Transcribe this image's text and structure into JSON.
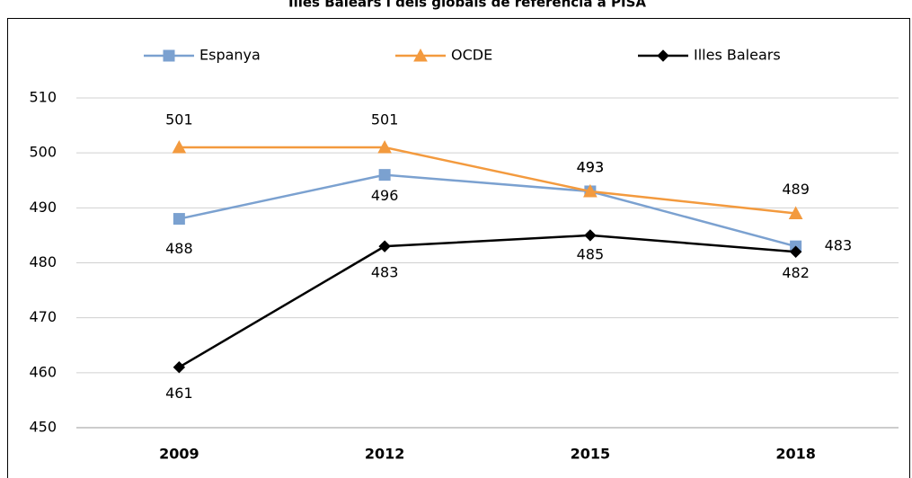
{
  "chart_data": {
    "type": "line",
    "title": "Illes Balears i dels globals de referència a PISA",
    "categories": [
      "2009",
      "2012",
      "2015",
      "2018"
    ],
    "series": [
      {
        "name": "Espanya",
        "color": "#7ba1d0",
        "marker": "square",
        "values": [
          488,
          496,
          493,
          483
        ]
      },
      {
        "name": "OCDE",
        "color": "#f39a3e",
        "marker": "triangle",
        "values": [
          501,
          501,
          493,
          489
        ]
      },
      {
        "name": "Illes Balears",
        "color": "#000000",
        "marker": "diamond",
        "values": [
          461,
          483,
          485,
          482
        ]
      }
    ],
    "ylim": [
      450,
      510
    ],
    "yticks": [
      450,
      460,
      470,
      480,
      490,
      500,
      510
    ],
    "grid": true,
    "legend": "top"
  }
}
